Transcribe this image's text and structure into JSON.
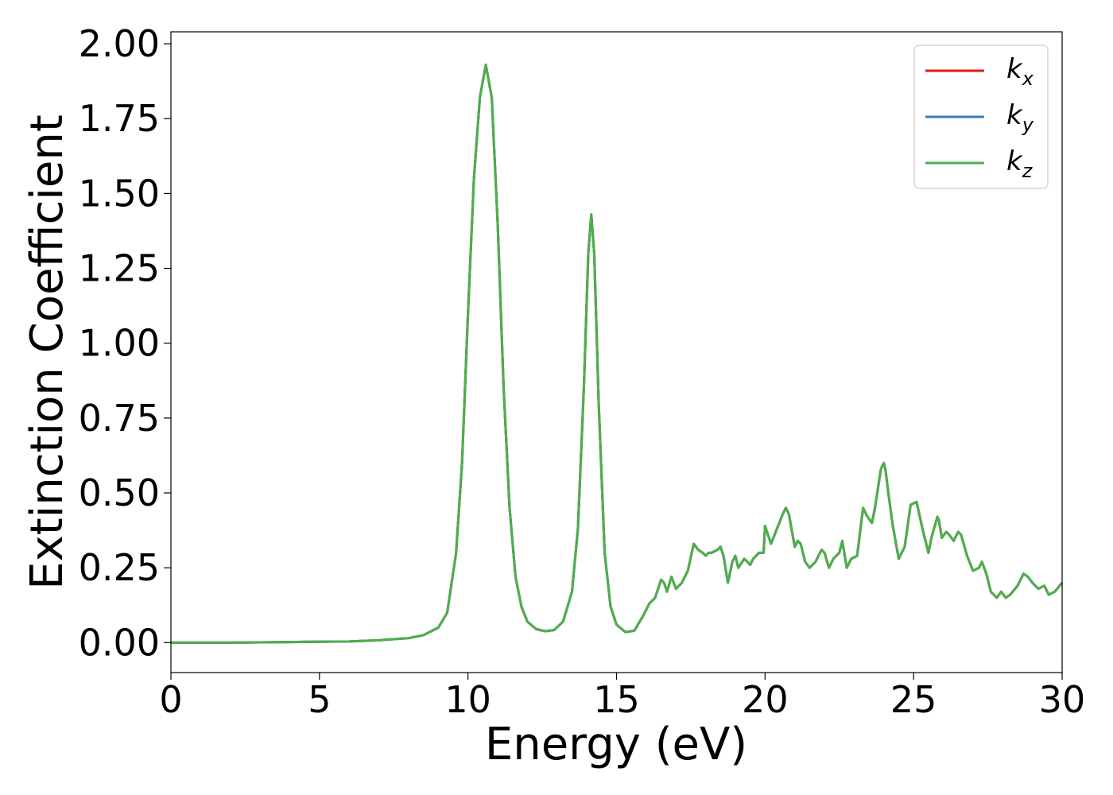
{
  "chart_data": {
    "type": "line",
    "xlabel": "Energy (eV)",
    "ylabel": "Extinction Coefficient",
    "xlim": [
      0,
      30
    ],
    "ylim": [
      -0.1,
      2.04
    ],
    "xticks": [
      0,
      5,
      10,
      15,
      20,
      25,
      30
    ],
    "xtick_labels": [
      "0",
      "5",
      "10",
      "15",
      "20",
      "25",
      "30"
    ],
    "yticks": [
      0,
      0.25,
      0.5,
      0.75,
      1.0,
      1.25,
      1.5,
      1.75,
      2.0
    ],
    "ytick_labels": [
      "0.00",
      "0.25",
      "0.50",
      "0.75",
      "1.00",
      "1.25",
      "1.50",
      "1.75",
      "2.00"
    ],
    "grid": false,
    "legend_position": "top-right",
    "x": [
      0,
      2,
      4,
      6,
      7,
      8,
      8.5,
      9,
      9.3,
      9.6,
      9.8,
      10.0,
      10.2,
      10.4,
      10.6,
      10.8,
      11.0,
      11.2,
      11.4,
      11.6,
      11.8,
      12.0,
      12.3,
      12.6,
      12.9,
      13.2,
      13.5,
      13.7,
      13.9,
      14.05,
      14.15,
      14.25,
      14.4,
      14.6,
      14.8,
      15.0,
      15.3,
      15.6,
      15.9,
      16.1,
      16.3,
      16.5,
      16.6,
      16.7,
      16.85,
      17.0,
      17.2,
      17.4,
      17.6,
      17.75,
      17.9,
      18.0,
      18.1,
      18.2,
      18.4,
      18.5,
      18.6,
      18.75,
      18.9,
      19.0,
      19.1,
      19.3,
      19.5,
      19.6,
      19.8,
      19.95,
      20.0,
      20.2,
      20.4,
      20.6,
      20.7,
      20.8,
      21.0,
      21.1,
      21.2,
      21.35,
      21.5,
      21.7,
      21.9,
      22.0,
      22.15,
      22.3,
      22.5,
      22.6,
      22.75,
      22.9,
      23.1,
      23.3,
      23.45,
      23.6,
      23.7,
      23.9,
      24.0,
      24.05,
      24.15,
      24.3,
      24.5,
      24.7,
      24.9,
      25.1,
      25.3,
      25.5,
      25.6,
      25.8,
      25.85,
      25.95,
      26.1,
      26.2,
      26.35,
      26.5,
      26.6,
      26.8,
      27.0,
      27.2,
      27.3,
      27.45,
      27.6,
      27.8,
      27.95,
      28.1,
      28.25,
      28.5,
      28.7,
      28.85,
      29.0,
      29.2,
      29.4,
      29.55,
      29.75,
      30.0
    ],
    "series": [
      {
        "name": "k_x",
        "color": "#e41a1c",
        "values": [
          0.0,
          0.0,
          0.002,
          0.004,
          0.008,
          0.015,
          0.025,
          0.05,
          0.1,
          0.3,
          0.6,
          1.1,
          1.55,
          1.82,
          1.93,
          1.82,
          1.4,
          0.85,
          0.45,
          0.22,
          0.12,
          0.07,
          0.045,
          0.038,
          0.042,
          0.07,
          0.17,
          0.38,
          0.85,
          1.3,
          1.43,
          1.3,
          0.8,
          0.3,
          0.12,
          0.06,
          0.035,
          0.04,
          0.09,
          0.13,
          0.15,
          0.21,
          0.2,
          0.17,
          0.22,
          0.18,
          0.2,
          0.24,
          0.33,
          0.31,
          0.3,
          0.29,
          0.3,
          0.3,
          0.31,
          0.32,
          0.29,
          0.2,
          0.27,
          0.29,
          0.25,
          0.28,
          0.26,
          0.28,
          0.3,
          0.3,
          0.39,
          0.33,
          0.38,
          0.43,
          0.45,
          0.43,
          0.32,
          0.34,
          0.33,
          0.27,
          0.25,
          0.27,
          0.31,
          0.3,
          0.25,
          0.28,
          0.3,
          0.34,
          0.25,
          0.28,
          0.29,
          0.45,
          0.42,
          0.4,
          0.45,
          0.58,
          0.6,
          0.58,
          0.5,
          0.39,
          0.28,
          0.32,
          0.46,
          0.47,
          0.38,
          0.3,
          0.35,
          0.42,
          0.41,
          0.35,
          0.37,
          0.36,
          0.34,
          0.37,
          0.36,
          0.29,
          0.24,
          0.25,
          0.27,
          0.23,
          0.17,
          0.15,
          0.17,
          0.15,
          0.16,
          0.19,
          0.23,
          0.22,
          0.2,
          0.18,
          0.19,
          0.16,
          0.17,
          0.2
        ]
      },
      {
        "name": "k_y",
        "color": "#377eb8",
        "values": [
          0.0,
          0.0,
          0.002,
          0.004,
          0.008,
          0.015,
          0.025,
          0.05,
          0.1,
          0.3,
          0.6,
          1.1,
          1.55,
          1.82,
          1.93,
          1.82,
          1.4,
          0.85,
          0.45,
          0.22,
          0.12,
          0.07,
          0.045,
          0.038,
          0.042,
          0.07,
          0.17,
          0.38,
          0.85,
          1.3,
          1.43,
          1.3,
          0.8,
          0.3,
          0.12,
          0.06,
          0.035,
          0.04,
          0.09,
          0.13,
          0.15,
          0.21,
          0.2,
          0.17,
          0.22,
          0.18,
          0.2,
          0.24,
          0.33,
          0.31,
          0.3,
          0.29,
          0.3,
          0.3,
          0.31,
          0.32,
          0.29,
          0.2,
          0.27,
          0.29,
          0.25,
          0.28,
          0.26,
          0.28,
          0.3,
          0.3,
          0.39,
          0.33,
          0.38,
          0.43,
          0.45,
          0.43,
          0.32,
          0.34,
          0.33,
          0.27,
          0.25,
          0.27,
          0.31,
          0.3,
          0.25,
          0.28,
          0.3,
          0.34,
          0.25,
          0.28,
          0.29,
          0.45,
          0.42,
          0.4,
          0.45,
          0.58,
          0.6,
          0.58,
          0.5,
          0.39,
          0.28,
          0.32,
          0.46,
          0.47,
          0.38,
          0.3,
          0.35,
          0.42,
          0.41,
          0.35,
          0.37,
          0.36,
          0.34,
          0.37,
          0.36,
          0.29,
          0.24,
          0.25,
          0.27,
          0.23,
          0.17,
          0.15,
          0.17,
          0.15,
          0.16,
          0.19,
          0.23,
          0.22,
          0.2,
          0.18,
          0.19,
          0.16,
          0.17,
          0.2
        ]
      },
      {
        "name": "k_z",
        "color": "#4daf4a",
        "values": [
          0.0,
          0.0,
          0.002,
          0.004,
          0.008,
          0.015,
          0.025,
          0.05,
          0.1,
          0.3,
          0.6,
          1.1,
          1.55,
          1.82,
          1.93,
          1.82,
          1.4,
          0.85,
          0.45,
          0.22,
          0.12,
          0.07,
          0.045,
          0.038,
          0.042,
          0.07,
          0.17,
          0.38,
          0.85,
          1.3,
          1.43,
          1.3,
          0.8,
          0.3,
          0.12,
          0.06,
          0.035,
          0.04,
          0.09,
          0.13,
          0.15,
          0.21,
          0.2,
          0.17,
          0.22,
          0.18,
          0.2,
          0.24,
          0.33,
          0.31,
          0.3,
          0.29,
          0.3,
          0.3,
          0.31,
          0.32,
          0.29,
          0.2,
          0.27,
          0.29,
          0.25,
          0.28,
          0.26,
          0.28,
          0.3,
          0.3,
          0.39,
          0.33,
          0.38,
          0.43,
          0.45,
          0.43,
          0.32,
          0.34,
          0.33,
          0.27,
          0.25,
          0.27,
          0.31,
          0.3,
          0.25,
          0.28,
          0.3,
          0.34,
          0.25,
          0.28,
          0.29,
          0.45,
          0.42,
          0.4,
          0.45,
          0.58,
          0.6,
          0.58,
          0.5,
          0.39,
          0.28,
          0.32,
          0.46,
          0.47,
          0.38,
          0.3,
          0.35,
          0.42,
          0.41,
          0.35,
          0.37,
          0.36,
          0.34,
          0.37,
          0.36,
          0.29,
          0.24,
          0.25,
          0.27,
          0.23,
          0.17,
          0.15,
          0.17,
          0.15,
          0.16,
          0.19,
          0.23,
          0.22,
          0.2,
          0.18,
          0.19,
          0.16,
          0.17,
          0.2
        ]
      }
    ],
    "legend": [
      {
        "base": "k",
        "sub": "x",
        "color": "#e41a1c"
      },
      {
        "base": "k",
        "sub": "y",
        "color": "#377eb8"
      },
      {
        "base": "k",
        "sub": "z",
        "color": "#4daf4a"
      }
    ]
  }
}
